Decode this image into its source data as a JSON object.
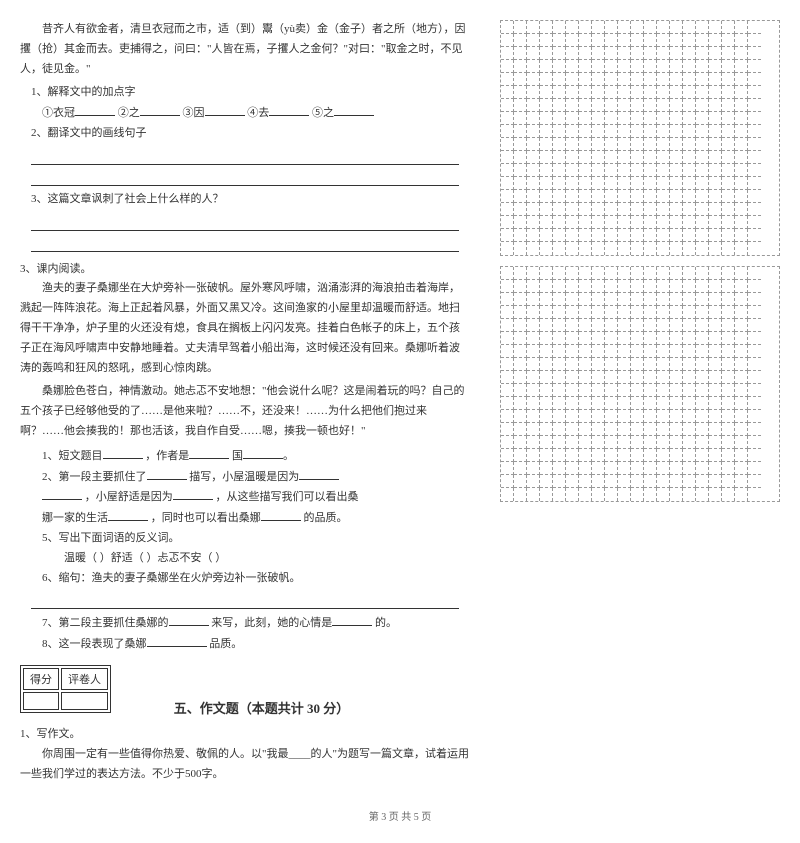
{
  "passage1": {
    "text": "昔齐人有欲金者，清旦衣冠而之市，适（到）鬻（yù卖）金（金子）者之所（地方），因攫（抢）其金而去。吏捕得之，问曰：\"人皆在焉，子攫人之金何？\"对曰：\"取金之时，不见人，徒见金。\""
  },
  "q1": {
    "label": "1、解释文中的加点字",
    "items": {
      "i1": "①衣冠",
      "i2": "②之",
      "i3": "③因",
      "i4": "④去",
      "i5": "⑤之"
    }
  },
  "q2": {
    "label": "2、翻译文中的画线句子"
  },
  "q3": {
    "label": "3、这篇文章讽刺了社会上什么样的人？"
  },
  "section3": {
    "label": "3、课内阅读。"
  },
  "passage2": {
    "p1": "渔夫的妻子桑娜坐在大炉旁补一张破帆。屋外寒风呼啸，汹涌澎湃的海浪拍击着海岸，溅起一阵阵浪花。海上正起着风暴，外面又黑又冷。这间渔家的小屋里却温暖而舒适。地扫得干干净净，炉子里的火还没有熄，食具在搁板上闪闪发亮。挂着白色帐子的床上，五个孩子正在海风呼啸声中安静地睡着。丈夫清早驾着小船出海，这时候还没有回来。桑娜听着波涛的轰鸣和狂风的怒吼，感到心惊肉跳。",
    "p2": "桑娜脸色苍白，神情激动。她忐忑不安地想：\"他会说什么呢？这是闹着玩的吗？自己的五个孩子已经够他受的了……是他来啦？……不，还没来！……为什么把他们抱过来啊？……他会揍我的！那也活该，我自作自受……嗯，揍我一顿也好！\""
  },
  "sq": {
    "s1": {
      "a": "1、短文题目",
      "b": "，作者是",
      "c": "国"
    },
    "s2": {
      "a": "2、第一段主要抓住了",
      "b": "描写，小屋温暖是因为"
    },
    "s2b": {
      "a": "，小屋舒适是因为",
      "b": "，从这些描写我们可以看出桑"
    },
    "s3": {
      "a": "娜一家的生活",
      "b": "，同时也可以看出桑娜",
      "c": "的品质。"
    },
    "s5": {
      "label": "5、写出下面词语的反义词。"
    },
    "s5b": {
      "a": "温暖（     ）舒适（     ）忐忑不安（     ）"
    },
    "s6": {
      "label": "6、缩句：渔夫的妻子桑娜坐在火炉旁边补一张破帆。"
    },
    "s7": {
      "a": "7、第二段主要抓住桑娜的",
      "b": "来写，此刻，她的心情是",
      "c": "的。"
    },
    "s8": {
      "a": "8、这一段表现了桑娜",
      "b": "品质。"
    }
  },
  "score": {
    "h1": "得分",
    "h2": "评卷人"
  },
  "section5": {
    "title": "五、作文题（本题共计 30 分）"
  },
  "composition": {
    "num": "1、写作文。",
    "text": "你周围一定有一些值得你热爱、敬佩的人。以\"我最____的人\"为题写一篇文章，试着运用一些我们学过的表达方法。不少于500字。"
  },
  "footer": {
    "text": "第 3 页 共 5 页"
  },
  "grid": {
    "rows1": 18,
    "rows2": 18,
    "cols": 20,
    "border_color": "#999"
  }
}
